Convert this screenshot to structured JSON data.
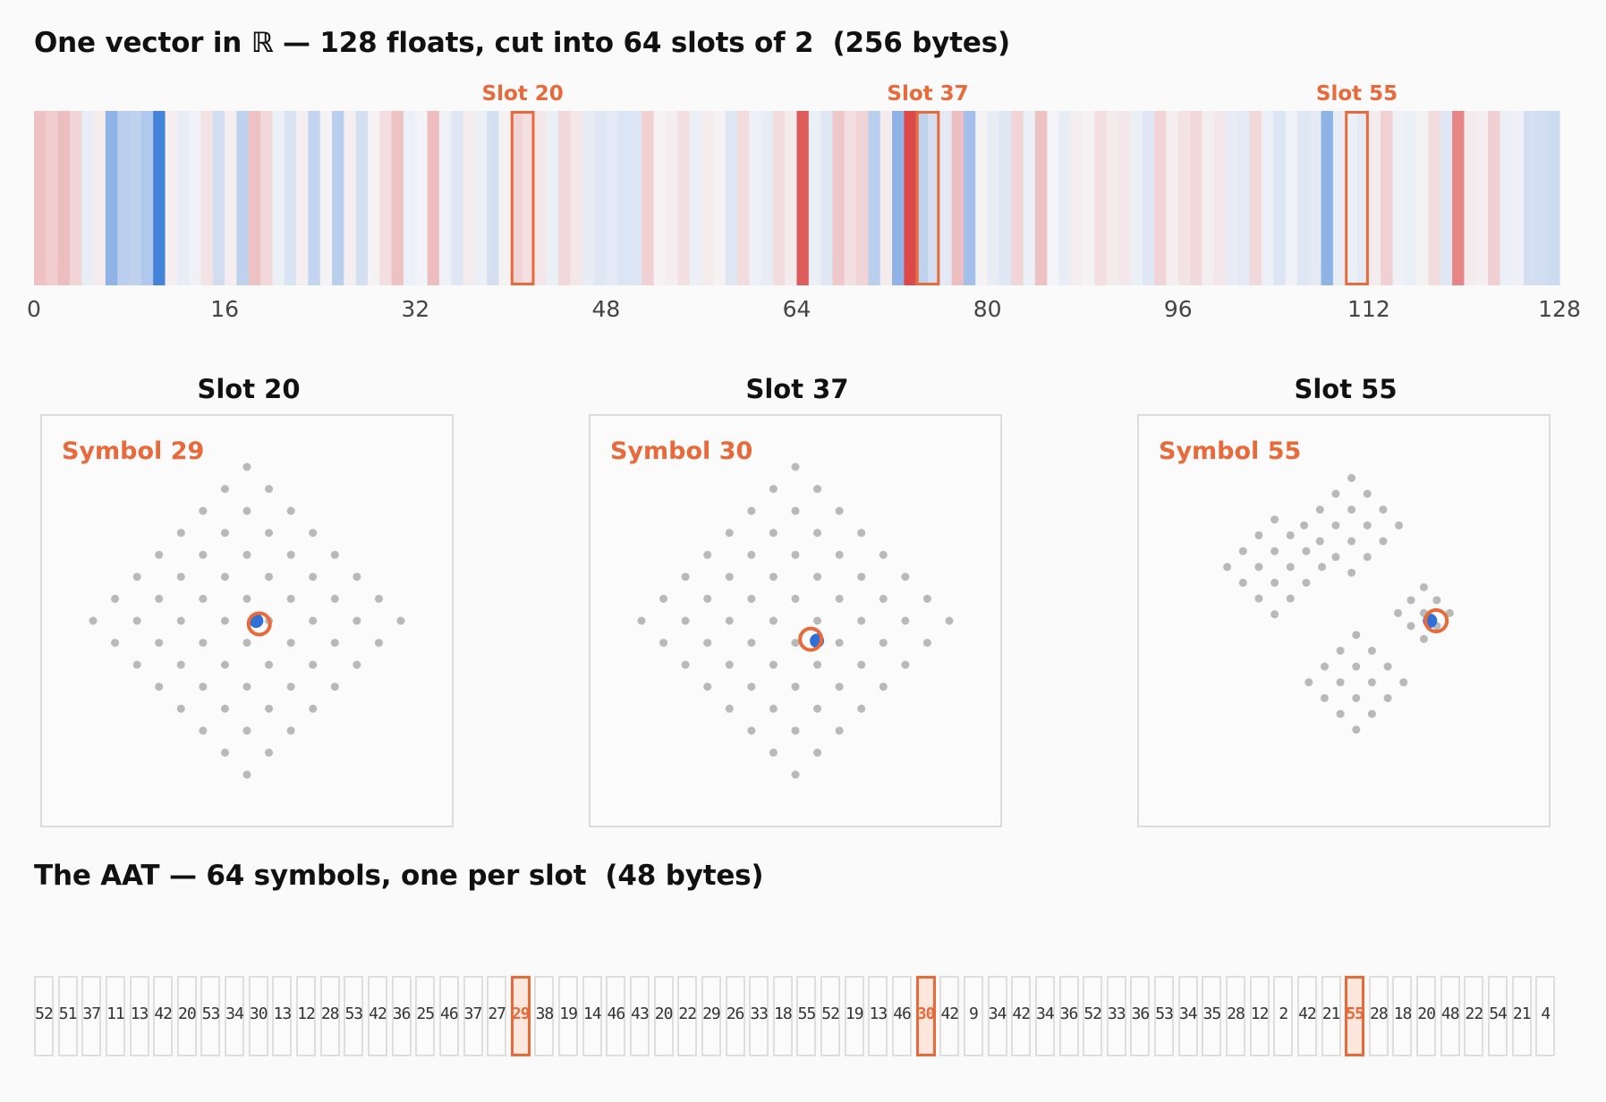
{
  "top_title": "One vector in ℝ — 128 floats, cut into 64 slots of 2  (256 bytes)",
  "aat_title": "The AAT — 64 symbols, one per slot  (48 bytes)",
  "colors": {
    "accent": "#e8693a",
    "accent_fill": "#fde6dc",
    "positive": "#d93a3a",
    "negative": "#3b7dd8",
    "lattice_dot": "#b9b9b9",
    "query_point": "#2f6fd6"
  },
  "vector": {
    "length": 128,
    "slot_size": 2,
    "axis_ticks": [
      0,
      16,
      32,
      48,
      64,
      80,
      96,
      112,
      128
    ],
    "values": [
      0.28,
      0.22,
      0.3,
      0.18,
      -0.08,
      0.06,
      -0.55,
      -0.32,
      -0.3,
      -0.38,
      -0.95,
      0.04,
      -0.08,
      -0.04,
      0.1,
      -0.2,
      0.05,
      -0.3,
      0.28,
      0.16,
      -0.06,
      -0.16,
      0.04,
      -0.28,
      0.02,
      -0.32,
      0.04,
      -0.18,
      0.02,
      0.12,
      0.28,
      -0.06,
      -0.02,
      0.3,
      -0.04,
      -0.12,
      0.06,
      -0.06,
      -0.18,
      0.02,
      0.18,
      0.12,
      0.08,
      -0.06,
      0.16,
      0.08,
      -0.08,
      -0.12,
      -0.1,
      -0.14,
      -0.14,
      0.2,
      0.02,
      0.04,
      0.12,
      -0.06,
      0.06,
      0.02,
      -0.12,
      0.14,
      -0.05,
      -0.08,
      0.14,
      0.06,
      0.82,
      -0.06,
      -0.12,
      0.24,
      0.12,
      0.18,
      -0.32,
      0.06,
      -0.55,
      0.92,
      -0.3,
      -0.18,
      -0.1,
      0.3,
      -0.45,
      0.02,
      -0.08,
      -0.12,
      0.18,
      -0.06,
      0.28,
      -0.02,
      -0.08,
      0.04,
      0.02,
      0.12,
      0.06,
      0.08,
      -0.06,
      -0.12,
      0.18,
      0.04,
      0.1,
      0.16,
      0.04,
      0.08,
      -0.08,
      -0.1,
      0.16,
      -0.06,
      -0.14,
      -0.04,
      -0.12,
      -0.1,
      -0.55,
      -0.08,
      -0.06,
      -0.1,
      0.06,
      0.2,
      -0.04,
      -0.06,
      0.02,
      0.14,
      -0.12,
      0.6,
      0.06,
      0.04,
      0.2,
      -0.06,
      -0.04,
      -0.18,
      -0.2,
      -0.22
    ],
    "highlight_slots": [
      20,
      37,
      55
    ],
    "slot_label_prefix": "Slot"
  },
  "panels": [
    {
      "title": "Slot 20",
      "symbol_label": "Symbol 29",
      "shape": "diamond",
      "query": [
        0.06,
        0.0
      ],
      "nearest": [
        0.08,
        -0.02
      ]
    },
    {
      "title": "Slot 37",
      "symbol_label": "Symbol 30",
      "shape": "diamond",
      "query": [
        0.14,
        -0.13
      ],
      "nearest": [
        0.1,
        -0.12
      ]
    },
    {
      "title": "Slot 55",
      "symbol_label": "Symbol 55",
      "shape": "blocks",
      "query": [
        0.56,
        0.0
      ],
      "nearest": [
        0.6,
        0.0
      ]
    }
  ],
  "aat": {
    "symbols": [
      52,
      51,
      37,
      11,
      13,
      42,
      20,
      53,
      34,
      30,
      13,
      12,
      28,
      53,
      42,
      36,
      25,
      46,
      37,
      27,
      29,
      38,
      19,
      14,
      46,
      43,
      20,
      22,
      29,
      26,
      33,
      18,
      55,
      52,
      19,
      13,
      46,
      30,
      42,
      9,
      34,
      42,
      34,
      36,
      52,
      33,
      36,
      53,
      34,
      35,
      28,
      12,
      2,
      42,
      21,
      55,
      28,
      18,
      20,
      48,
      22,
      54,
      21,
      4
    ],
    "highlight_indices": [
      20,
      37,
      55
    ]
  }
}
